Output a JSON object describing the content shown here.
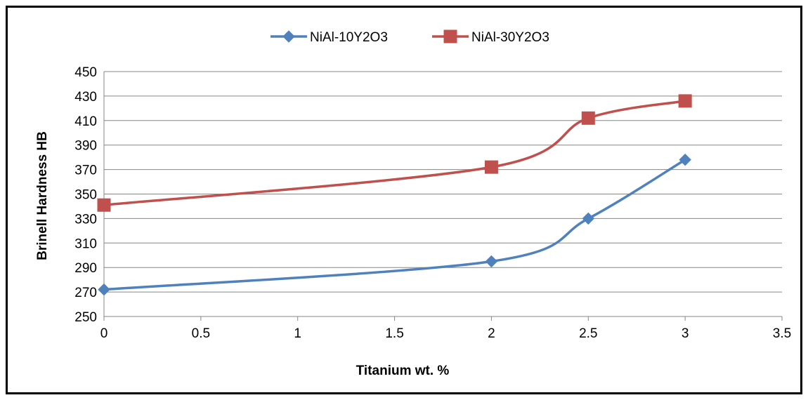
{
  "chart_data": {
    "type": "line",
    "title": "",
    "xlabel": "Titanium wt. %",
    "ylabel": "Brinell Hardness HB",
    "xlim": [
      0,
      3.5
    ],
    "ylim": [
      250,
      450
    ],
    "x_ticks": [
      "0",
      "0.5",
      "1",
      "1.5",
      "2",
      "2.5",
      "3",
      "3.5"
    ],
    "y_ticks": [
      "250",
      "270",
      "290",
      "310",
      "330",
      "350",
      "370",
      "390",
      "410",
      "430",
      "450"
    ],
    "grid": "horizontal",
    "legend_position": "top",
    "smoothed": true,
    "series": [
      {
        "name": "NiAl-10Y2O3",
        "color": "#4F81BD",
        "marker": "diamond",
        "x": [
          0,
          2,
          2.5,
          3
        ],
        "y": [
          272,
          295,
          330,
          378
        ]
      },
      {
        "name": "NiAl-30Y2O3",
        "color": "#C0504D",
        "marker": "square",
        "x": [
          0,
          2,
          2.5,
          3
        ],
        "y": [
          341,
          372,
          412,
          426
        ]
      }
    ]
  }
}
